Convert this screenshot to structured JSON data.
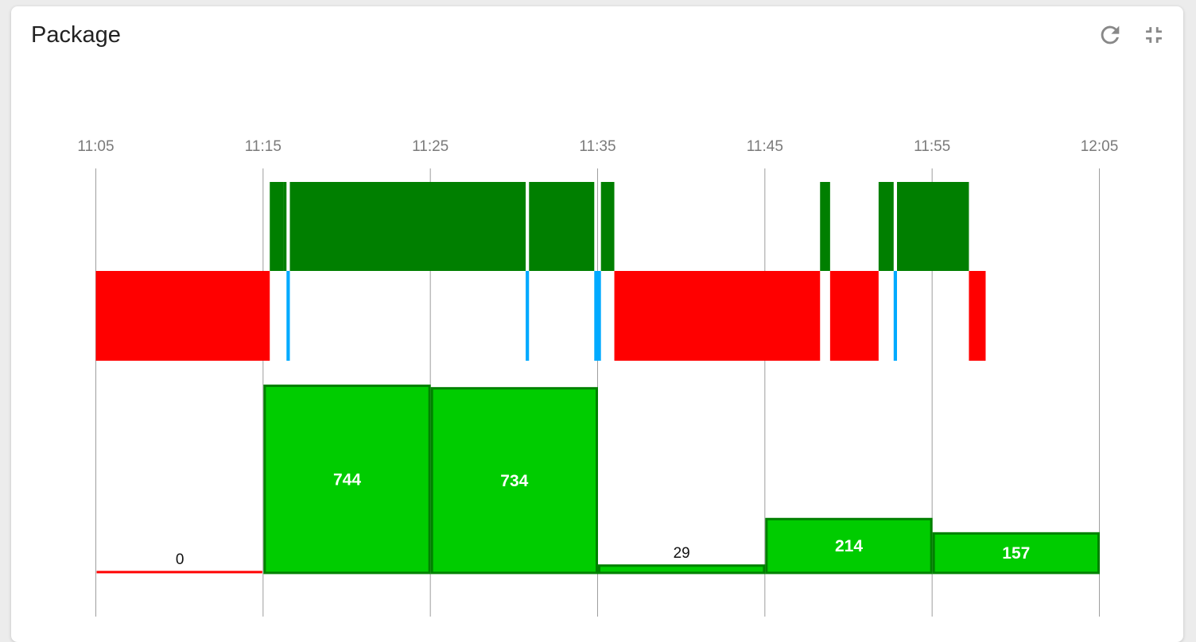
{
  "widget": {
    "title": "Package",
    "refresh_icon": "refresh-icon",
    "collapse_icon": "fullscreen-exit-icon"
  },
  "chart_data": {
    "type": "bar",
    "x_ticks": [
      "11:05",
      "11:15",
      "11:25",
      "11:35",
      "11:45",
      "11:55",
      "12:05"
    ],
    "x_range": [
      "11:05",
      "12:05"
    ],
    "grid": true,
    "colors": {
      "up": "#007f00",
      "down": "#ff0000",
      "transition": "#00aaff",
      "bar_fill": "#00cc00",
      "bar_border": "#008000",
      "gridline": "#9e9e9e"
    },
    "status_timeline": [
      {
        "status": "down",
        "start": "11:05:00",
        "end": "11:15:24"
      },
      {
        "status": "up",
        "start": "11:15:24",
        "end": "11:16:12"
      },
      {
        "status": "up",
        "start": "11:16:12",
        "end": "11:16:24"
      },
      {
        "status": "transition",
        "start": "11:16:24",
        "end": "11:16:36"
      },
      {
        "status": "up",
        "start": "11:16:36",
        "end": "11:30:42"
      },
      {
        "status": "transition",
        "start": "11:30:42",
        "end": "11:30:54"
      },
      {
        "status": "up",
        "start": "11:30:54",
        "end": "11:34:48"
      },
      {
        "status": "transition",
        "start": "11:34:48",
        "end": "11:35:12"
      },
      {
        "status": "up",
        "start": "11:35:12",
        "end": "11:36:00"
      },
      {
        "status": "down",
        "start": "11:36:00",
        "end": "11:48:18"
      },
      {
        "status": "up",
        "start": "11:48:18",
        "end": "11:48:54"
      },
      {
        "status": "down",
        "start": "11:48:54",
        "end": "11:51:48"
      },
      {
        "status": "up",
        "start": "11:51:48",
        "end": "11:52:42"
      },
      {
        "status": "transition",
        "start": "11:52:42",
        "end": "11:52:54"
      },
      {
        "status": "up",
        "start": "11:52:54",
        "end": "11:57:12"
      },
      {
        "status": "down",
        "start": "11:57:12",
        "end": "11:58:12"
      }
    ],
    "bars": {
      "y_max": 800,
      "data": [
        {
          "start": "11:05",
          "end": "11:15",
          "value": 0
        },
        {
          "start": "11:15",
          "end": "11:25",
          "value": 744
        },
        {
          "start": "11:25",
          "end": "11:35",
          "value": 734
        },
        {
          "start": "11:35",
          "end": "11:45",
          "value": 29
        },
        {
          "start": "11:45",
          "end": "11:55",
          "value": 214
        },
        {
          "start": "11:55",
          "end": "12:05",
          "value": 157
        }
      ]
    }
  }
}
